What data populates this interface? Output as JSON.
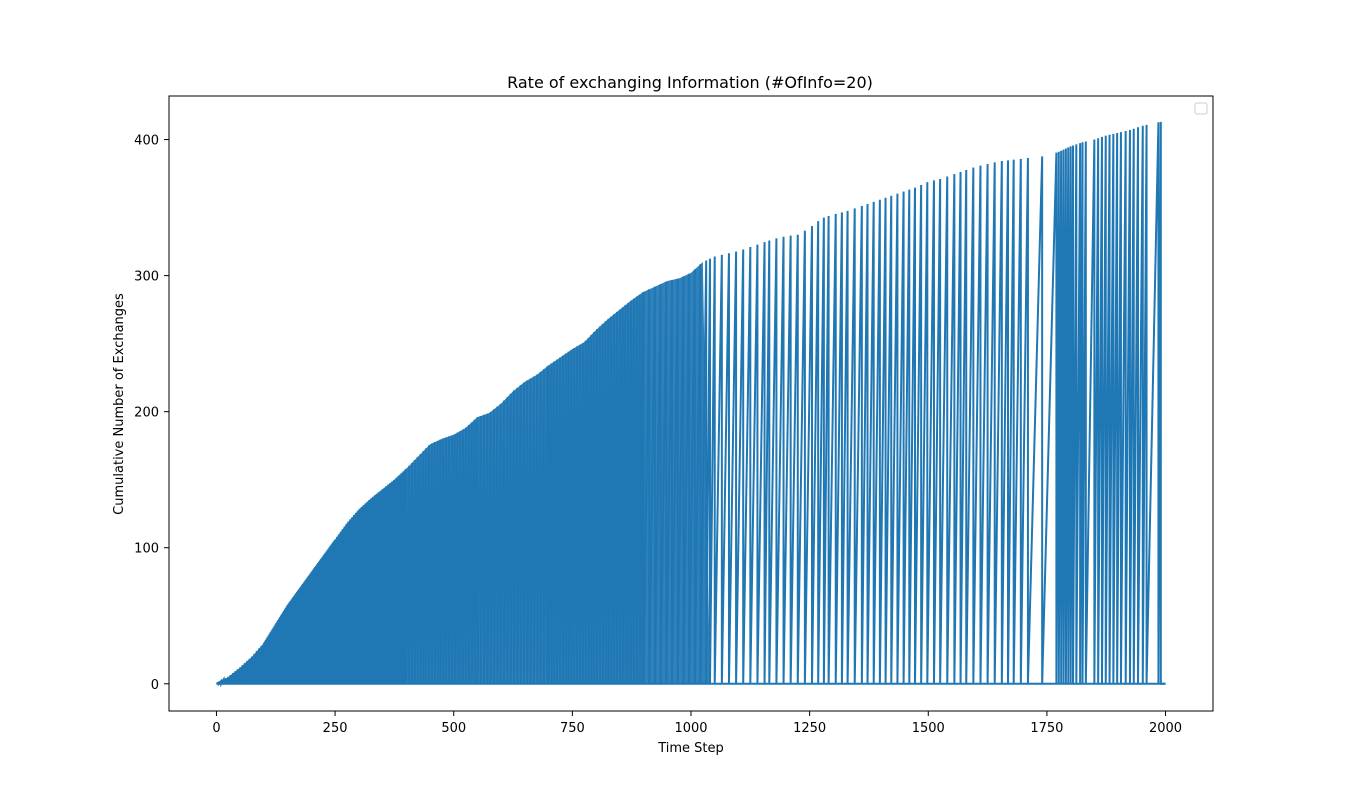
{
  "chart_data": {
    "type": "line",
    "title": "Rate of exchanging Information (#OfInfo=20)",
    "xlabel": "Time Step",
    "ylabel": "Cumulative Number of Exchanges",
    "xlim": [
      -100,
      2100
    ],
    "ylim": [
      -20,
      432
    ],
    "xticks": [
      0,
      250,
      500,
      750,
      1000,
      1250,
      1500,
      1750,
      2000
    ],
    "xtick_labels": [
      "0",
      "250",
      "500",
      "750",
      "1000",
      "1250",
      "1500",
      "1750",
      "2000"
    ],
    "yticks": [
      0,
      100,
      200,
      300,
      400
    ],
    "ytick_labels": [
      "0",
      "100",
      "200",
      "300",
      "400"
    ],
    "grid": false,
    "legend": "top-right",
    "series_color": "#1f77b4",
    "x_range": [
      0,
      2000
    ],
    "baseline": 0,
    "envelope": {
      "x": [
        0,
        25,
        50,
        75,
        100,
        125,
        150,
        175,
        200,
        225,
        250,
        275,
        300,
        325,
        350,
        375,
        400,
        425,
        450,
        475,
        500,
        525,
        550,
        575,
        600,
        625,
        650,
        675,
        700,
        725,
        750,
        775,
        800,
        825,
        850,
        875,
        900,
        925,
        950,
        975,
        1000,
        1025,
        1050,
        1075,
        1100,
        1125,
        1150,
        1175,
        1200,
        1225,
        1250,
        1275,
        1300,
        1325,
        1350,
        1375,
        1400,
        1425,
        1450,
        1475,
        1500,
        1525,
        1550,
        1575,
        1600,
        1625,
        1650,
        1675,
        1700,
        1725,
        1750,
        1775,
        1800,
        1825,
        1850,
        1875,
        1900,
        1925,
        1950,
        1975,
        1990
      ],
      "y": [
        0,
        5,
        12,
        20,
        30,
        44,
        58,
        70,
        82,
        94,
        106,
        118,
        128,
        136,
        143,
        150,
        158,
        167,
        176,
        180,
        183,
        188,
        196,
        199,
        206,
        215,
        222,
        227,
        234,
        240,
        246,
        251,
        260,
        268,
        275,
        282,
        288,
        292,
        296,
        298,
        302,
        310,
        314,
        316,
        318,
        321,
        324,
        327,
        329,
        330,
        335,
        342,
        345,
        347,
        350,
        353,
        356,
        359,
        362,
        365,
        369,
        371,
        374,
        377,
        380,
        382,
        384,
        385,
        386,
        387,
        388,
        391,
        395,
        398,
        400,
        403,
        405,
        407,
        410,
        412,
        413
      ]
    },
    "sparse_x": [
      1040,
      1050,
      1065,
      1080,
      1095,
      1110,
      1125,
      1140,
      1155,
      1165,
      1180,
      1195,
      1210,
      1225,
      1240,
      1255,
      1268,
      1280,
      1290,
      1305,
      1318,
      1330,
      1345,
      1360,
      1372,
      1385,
      1398,
      1410,
      1422,
      1435,
      1448,
      1460,
      1472,
      1485,
      1498,
      1512,
      1525,
      1540,
      1555,
      1568,
      1580,
      1595,
      1610,
      1625,
      1640,
      1655,
      1668,
      1680,
      1695,
      1710,
      1740,
      1770,
      1775,
      1780,
      1785,
      1790,
      1795,
      1800,
      1805,
      1812,
      1820,
      1825,
      1832,
      1850,
      1858,
      1866,
      1874,
      1882,
      1890,
      1898,
      1906,
      1916,
      1925,
      1933,
      1942,
      1952,
      1960,
      1985,
      1990
    ],
    "densities": [
      {
        "range": [
          0,
          100
        ],
        "step": 5
      },
      {
        "range": [
          100,
          250
        ],
        "step": 2
      },
      {
        "range": [
          250,
          400
        ],
        "step": 4
      },
      {
        "range": [
          400,
          550
        ],
        "step": 6
      },
      {
        "range": [
          550,
          700
        ],
        "step": 7
      },
      {
        "range": [
          700,
          900
        ],
        "step": 6
      },
      {
        "range": [
          900,
          1040
        ],
        "step": 12
      }
    ]
  }
}
